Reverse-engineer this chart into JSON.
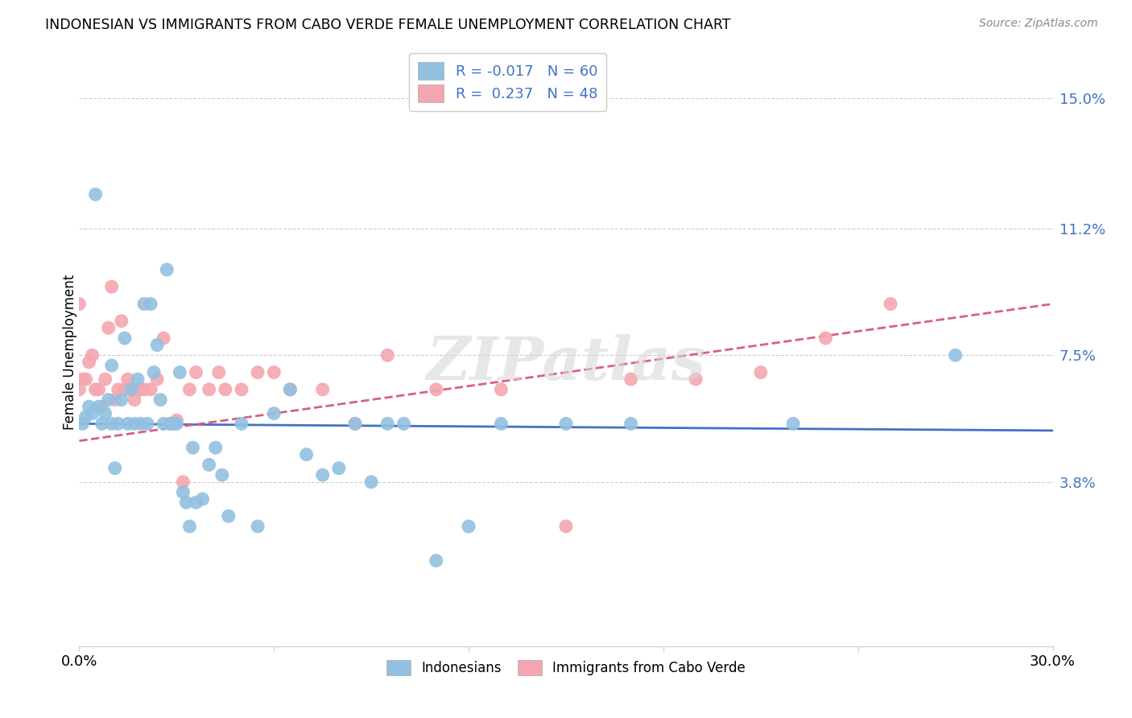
{
  "title": "INDONESIAN VS IMMIGRANTS FROM CABO VERDE FEMALE UNEMPLOYMENT CORRELATION CHART",
  "source": "Source: ZipAtlas.com",
  "ylabel": "Female Unemployment",
  "y_ticks": [
    0.0,
    0.038,
    0.075,
    0.112,
    0.15
  ],
  "y_tick_labels": [
    "",
    "3.8%",
    "7.5%",
    "11.2%",
    "15.0%"
  ],
  "x_min": 0.0,
  "x_max": 0.3,
  "y_min": -0.01,
  "y_max": 0.162,
  "blue_R": -0.017,
  "blue_N": 60,
  "pink_R": 0.237,
  "pink_N": 48,
  "blue_color": "#92c0e0",
  "pink_color": "#f4a7b0",
  "blue_line_color": "#4472c4",
  "pink_line_color": "#d86080",
  "watermark": "ZIPatlas",
  "legend_label_blue": "Indonesians",
  "legend_label_pink": "Immigrants from Cabo Verde",
  "blue_x": [
    0.001,
    0.002,
    0.003,
    0.004,
    0.005,
    0.006,
    0.007,
    0.008,
    0.009,
    0.01,
    0.01,
    0.011,
    0.012,
    0.013,
    0.014,
    0.015,
    0.016,
    0.017,
    0.018,
    0.019,
    0.02,
    0.021,
    0.022,
    0.023,
    0.024,
    0.025,
    0.026,
    0.027,
    0.028,
    0.029,
    0.03,
    0.031,
    0.032,
    0.033,
    0.034,
    0.035,
    0.036,
    0.038,
    0.04,
    0.042,
    0.044,
    0.046,
    0.05,
    0.055,
    0.06,
    0.065,
    0.07,
    0.075,
    0.08,
    0.085,
    0.09,
    0.095,
    0.1,
    0.11,
    0.12,
    0.13,
    0.15,
    0.17,
    0.22,
    0.27
  ],
  "blue_y": [
    0.055,
    0.057,
    0.06,
    0.058,
    0.122,
    0.06,
    0.055,
    0.058,
    0.062,
    0.055,
    0.072,
    0.042,
    0.055,
    0.062,
    0.08,
    0.055,
    0.065,
    0.055,
    0.068,
    0.055,
    0.09,
    0.055,
    0.09,
    0.07,
    0.078,
    0.062,
    0.055,
    0.1,
    0.055,
    0.055,
    0.055,
    0.07,
    0.035,
    0.032,
    0.025,
    0.048,
    0.032,
    0.033,
    0.043,
    0.048,
    0.04,
    0.028,
    0.055,
    0.025,
    0.058,
    0.065,
    0.046,
    0.04,
    0.042,
    0.055,
    0.038,
    0.055,
    0.055,
    0.015,
    0.025,
    0.055,
    0.055,
    0.055,
    0.055,
    0.075
  ],
  "pink_x": [
    0.0,
    0.0,
    0.001,
    0.002,
    0.003,
    0.004,
    0.005,
    0.006,
    0.007,
    0.008,
    0.009,
    0.01,
    0.011,
    0.012,
    0.013,
    0.014,
    0.015,
    0.016,
    0.017,
    0.018,
    0.019,
    0.02,
    0.022,
    0.024,
    0.026,
    0.028,
    0.03,
    0.032,
    0.034,
    0.036,
    0.04,
    0.043,
    0.045,
    0.05,
    0.055,
    0.06,
    0.065,
    0.075,
    0.085,
    0.095,
    0.11,
    0.13,
    0.15,
    0.17,
    0.19,
    0.21,
    0.23,
    0.25
  ],
  "pink_y": [
    0.09,
    0.065,
    0.068,
    0.068,
    0.073,
    0.075,
    0.065,
    0.065,
    0.06,
    0.068,
    0.083,
    0.095,
    0.062,
    0.065,
    0.085,
    0.065,
    0.068,
    0.065,
    0.062,
    0.065,
    0.065,
    0.065,
    0.065,
    0.068,
    0.08,
    0.055,
    0.056,
    0.038,
    0.065,
    0.07,
    0.065,
    0.07,
    0.065,
    0.065,
    0.07,
    0.07,
    0.065,
    0.065,
    0.055,
    0.075,
    0.065,
    0.065,
    0.025,
    0.068,
    0.068,
    0.07,
    0.08,
    0.09
  ]
}
